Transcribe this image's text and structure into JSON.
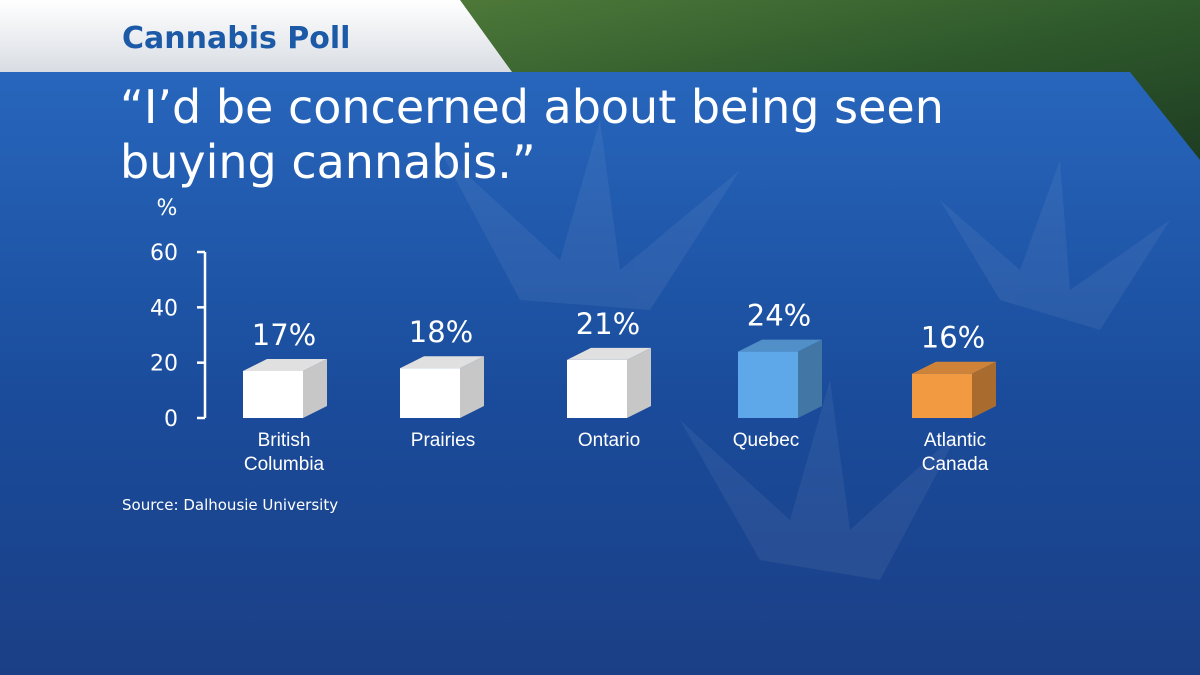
{
  "header": "Cannabis Poll",
  "chart_data": {
    "type": "bar3d",
    "title": "“I’d be concerned about being seen buying cannabis.”",
    "y_label": "%",
    "categories": [
      "British Columbia",
      "Prairies",
      "Ontario",
      "Quebec",
      "Atlantic Canada"
    ],
    "values": [
      17,
      18,
      21,
      24,
      16
    ],
    "value_labels": [
      "17%",
      "18%",
      "21%",
      "24%",
      "16%"
    ],
    "colors": [
      "#ffffff",
      "#ffffff",
      "#ffffff",
      "#5ea8ea",
      "#f29a42"
    ],
    "ylim": [
      0,
      60
    ],
    "yticks": [
      0,
      20,
      40,
      60
    ],
    "source": "Source: Dalhousie University"
  }
}
